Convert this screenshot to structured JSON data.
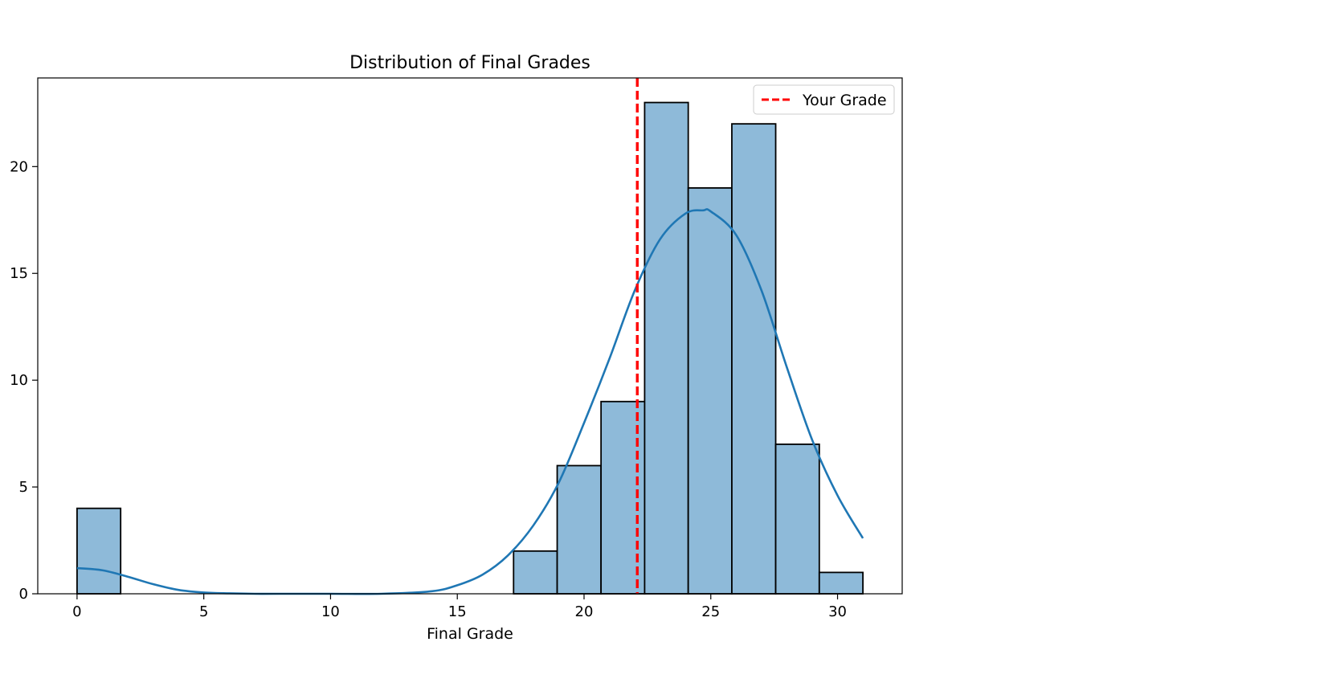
{
  "chart_data": {
    "type": "bar",
    "title": "Distribution of Final Grades",
    "xlabel": "Final Grade",
    "ylabel": "",
    "xlim": [
      -1.55,
      32.55
    ],
    "ylim": [
      0,
      24.15
    ],
    "bins": [
      {
        "start": 0.0,
        "end": 1.72,
        "count": 4
      },
      {
        "start": 1.72,
        "end": 3.44,
        "count": 0
      },
      {
        "start": 3.44,
        "end": 5.17,
        "count": 0
      },
      {
        "start": 5.17,
        "end": 6.89,
        "count": 0
      },
      {
        "start": 6.89,
        "end": 8.61,
        "count": 0
      },
      {
        "start": 8.61,
        "end": 10.33,
        "count": 0
      },
      {
        "start": 10.33,
        "end": 12.06,
        "count": 0
      },
      {
        "start": 12.06,
        "end": 13.78,
        "count": 0
      },
      {
        "start": 13.78,
        "end": 15.5,
        "count": 0
      },
      {
        "start": 15.5,
        "end": 17.22,
        "count": 0
      },
      {
        "start": 17.22,
        "end": 18.94,
        "count": 2
      },
      {
        "start": 18.94,
        "end": 20.67,
        "count": 6
      },
      {
        "start": 20.67,
        "end": 22.39,
        "count": 9
      },
      {
        "start": 22.39,
        "end": 24.11,
        "count": 23
      },
      {
        "start": 24.11,
        "end": 25.83,
        "count": 19
      },
      {
        "start": 25.83,
        "end": 27.56,
        "count": 22
      },
      {
        "start": 27.56,
        "end": 29.28,
        "count": 7
      },
      {
        "start": 29.28,
        "end": 31.0,
        "count": 1
      }
    ],
    "kde": {
      "x": [
        0,
        1,
        2,
        3,
        4,
        5,
        6,
        7,
        8,
        10,
        12,
        14,
        15,
        16,
        17,
        18,
        19,
        20,
        21,
        22,
        23,
        24,
        24.7,
        25,
        26,
        27,
        28,
        29,
        30,
        31
      ],
      "y": [
        1.2,
        1.1,
        0.8,
        0.45,
        0.18,
        0.06,
        0.02,
        0.0,
        0.0,
        0.0,
        0.0,
        0.12,
        0.4,
        0.9,
        1.8,
        3.2,
        5.2,
        8.0,
        11.0,
        14.2,
        16.6,
        17.8,
        17.95,
        17.9,
        16.8,
        14.2,
        10.6,
        7.2,
        4.6,
        2.6
      ]
    },
    "reference_line": {
      "x": 22.1,
      "label": "Your Grade",
      "color": "#ff0000",
      "style": "dashed"
    },
    "x_ticks": [
      0,
      5,
      10,
      15,
      20,
      25,
      30
    ],
    "y_ticks": [
      0,
      5,
      10,
      15,
      20
    ],
    "legend": {
      "placement": "top-right",
      "entries": [
        "Your Grade"
      ]
    },
    "colors": {
      "bar_fill": "#8ebad9",
      "bar_edge": "#000000",
      "kde_line": "#1f77b4",
      "reference_line": "#ff0000"
    },
    "grid": false
  }
}
